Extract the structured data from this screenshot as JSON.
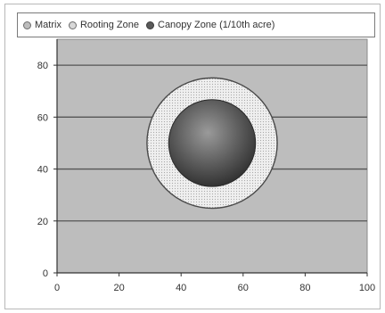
{
  "chart_data": {
    "type": "scatter",
    "title": "",
    "xlabel": "",
    "ylabel": "",
    "xlim": [
      0,
      100
    ],
    "ylim": [
      0,
      90
    ],
    "x_ticks": [
      0,
      20,
      40,
      60,
      80,
      100
    ],
    "y_ticks": [
      0,
      20,
      40,
      60,
      80
    ],
    "grid": "horizontal",
    "legend_position": "top",
    "series": [
      {
        "name": "Matrix",
        "fill": "#bdbdbd",
        "region": {
          "x_min": 0,
          "x_max": 100,
          "y_min": 0,
          "y_max": 90
        }
      },
      {
        "name": "Rooting Zone",
        "fill": "#efefef",
        "circle": {
          "center_x": 50,
          "center_y": 50,
          "radius": 21
        }
      },
      {
        "name": "Canopy Zone (1/10th acre)",
        "fill": "#5a5a5a",
        "circle": {
          "center_x": 50,
          "center_y": 50,
          "radius": 14
        }
      }
    ]
  }
}
